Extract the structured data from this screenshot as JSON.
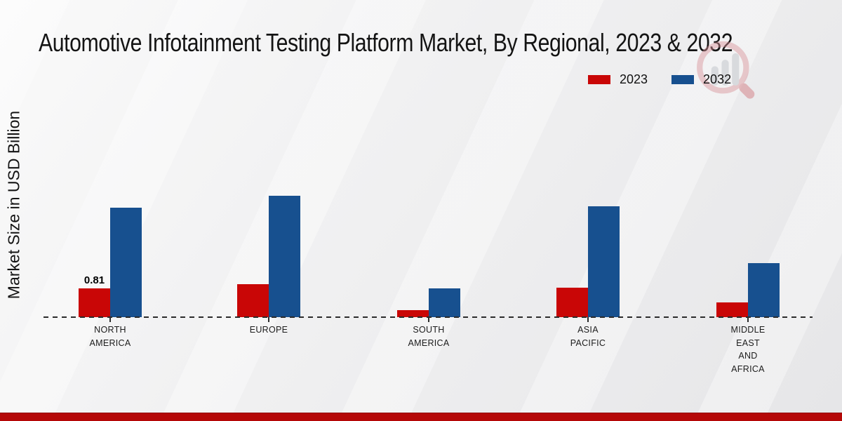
{
  "chart_data": {
    "type": "bar",
    "title": "Automotive Infotainment Testing Platform Market, By Regional, 2023 & 2032",
    "ylabel": "Market Size in USD Billion",
    "xlabel": "",
    "categories": [
      "NORTH AMERICA",
      "EUROPE",
      "SOUTH AMERICA",
      "ASIA PACIFIC",
      "MIDDLE EAST AND AFRICA"
    ],
    "category_label_lines": [
      [
        "NORTH",
        "AMERICA"
      ],
      [
        "EUROPE"
      ],
      [
        "SOUTH",
        "AMERICA"
      ],
      [
        "ASIA",
        "PACIFIC"
      ],
      [
        "MIDDLE",
        "EAST",
        "AND",
        "AFRICA"
      ]
    ],
    "series": [
      {
        "name": "2023",
        "color": "#c90606",
        "values": [
          0.81,
          0.93,
          0.2,
          0.83,
          0.41
        ]
      },
      {
        "name": "2032",
        "color": "#17508f",
        "values": [
          3.08,
          3.42,
          0.81,
          3.12,
          1.52
        ]
      }
    ],
    "data_labels": [
      {
        "series": "2023",
        "category_index": 0,
        "text": "0.81"
      }
    ],
    "ylim": [
      0,
      3.8
    ],
    "grid": false,
    "legend_position": "top-right",
    "axis_baseline": "dashed"
  },
  "colors": {
    "series_2023": "#c90606",
    "series_2032": "#17508f",
    "footer_bar": "#b50808",
    "baseline": "#2b2b2b",
    "text": "#111111"
  },
  "watermark": {
    "icon": "market-research-magnifier-logo"
  }
}
